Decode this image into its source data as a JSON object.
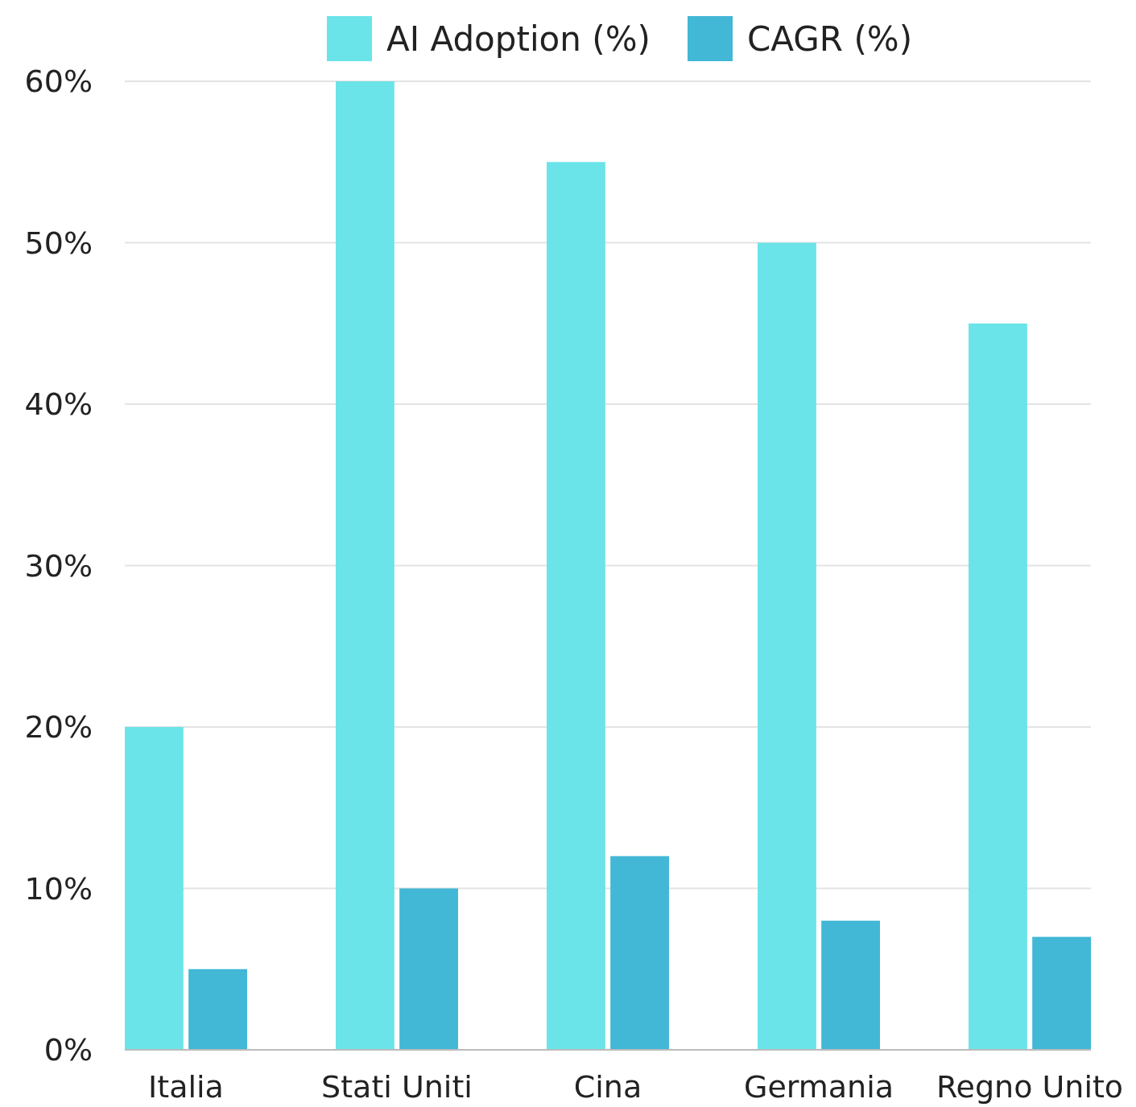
{
  "chart_data": {
    "type": "bar",
    "categories": [
      "Italia",
      "Stati Uniti",
      "Cina",
      "Germania",
      "Regno Unito"
    ],
    "series": [
      {
        "name": "AI Adoption (%)",
        "color": "#6ae4e8",
        "values": [
          20,
          60,
          55,
          50,
          45
        ]
      },
      {
        "name": "CAGR (%)",
        "color": "#42b7d6",
        "values": [
          5,
          10,
          12,
          8,
          7
        ]
      }
    ],
    "ylim": [
      0,
      60
    ],
    "yticks": [
      {
        "value": 0,
        "label": "0%"
      },
      {
        "value": 10,
        "label": "10%"
      },
      {
        "value": 20,
        "label": "20%"
      },
      {
        "value": 30,
        "label": "30%"
      },
      {
        "value": 40,
        "label": "40%"
      },
      {
        "value": 50,
        "label": "50%"
      },
      {
        "value": 60,
        "label": "60%"
      }
    ],
    "grid": "y",
    "legend": "top"
  }
}
